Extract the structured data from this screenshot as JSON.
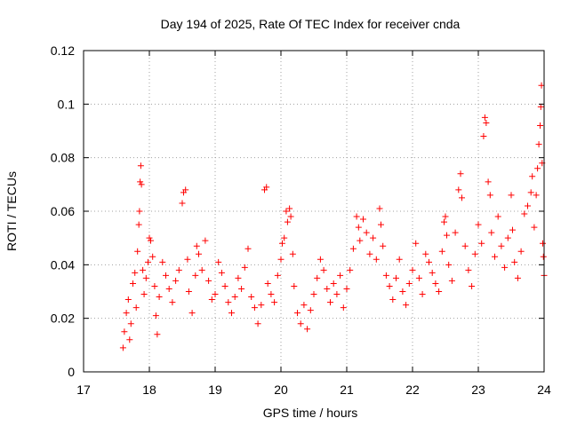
{
  "chart_data": {
    "type": "scatter",
    "title": "Day 194 of 2025, Rate Of TEC Index for receiver cnda",
    "xlabel": "GPS time / hours",
    "ylabel": "ROTI / TECUs",
    "xlim": [
      17,
      24
    ],
    "ylim": [
      0,
      0.12
    ],
    "xticks": [
      17,
      18,
      19,
      20,
      21,
      22,
      23,
      24
    ],
    "yticks": [
      0,
      0.02,
      0.04,
      0.06,
      0.08,
      0.1,
      0.12
    ],
    "x_tick_labels": [
      "17",
      "18",
      "19",
      "20",
      "21",
      "22",
      "23",
      "24"
    ],
    "y_tick_labels": [
      "0",
      "0.02",
      "0.04",
      "0.06",
      "0.08",
      "0.1",
      "0.12"
    ],
    "grid": true,
    "marker": "+",
    "color": "#ff0000",
    "series": [
      {
        "name": "ROTI",
        "points": [
          [
            17.6,
            0.009
          ],
          [
            17.62,
            0.015
          ],
          [
            17.65,
            0.022
          ],
          [
            17.68,
            0.027
          ],
          [
            17.7,
            0.012
          ],
          [
            17.72,
            0.018
          ],
          [
            17.75,
            0.033
          ],
          [
            17.78,
            0.037
          ],
          [
            17.8,
            0.024
          ],
          [
            17.82,
            0.045
          ],
          [
            17.84,
            0.055
          ],
          [
            17.85,
            0.06
          ],
          [
            17.86,
            0.071
          ],
          [
            17.87,
            0.077
          ],
          [
            17.88,
            0.07
          ],
          [
            17.9,
            0.038
          ],
          [
            17.92,
            0.029
          ],
          [
            17.95,
            0.035
          ],
          [
            17.98,
            0.041
          ],
          [
            18.0,
            0.05
          ],
          [
            18.02,
            0.049
          ],
          [
            18.05,
            0.043
          ],
          [
            18.08,
            0.032
          ],
          [
            18.1,
            0.021
          ],
          [
            18.12,
            0.014
          ],
          [
            18.15,
            0.028
          ],
          [
            18.2,
            0.041
          ],
          [
            18.25,
            0.036
          ],
          [
            18.3,
            0.031
          ],
          [
            18.35,
            0.026
          ],
          [
            18.4,
            0.034
          ],
          [
            18.45,
            0.038
          ],
          [
            18.5,
            0.063
          ],
          [
            18.52,
            0.067
          ],
          [
            18.55,
            0.068
          ],
          [
            18.58,
            0.042
          ],
          [
            18.6,
            0.03
          ],
          [
            18.65,
            0.022
          ],
          [
            18.7,
            0.036
          ],
          [
            18.72,
            0.047
          ],
          [
            18.75,
            0.044
          ],
          [
            18.8,
            0.038
          ],
          [
            18.85,
            0.049
          ],
          [
            18.9,
            0.034
          ],
          [
            18.95,
            0.027
          ],
          [
            19.0,
            0.029
          ],
          [
            19.05,
            0.041
          ],
          [
            19.1,
            0.037
          ],
          [
            19.15,
            0.032
          ],
          [
            19.2,
            0.026
          ],
          [
            19.25,
            0.022
          ],
          [
            19.3,
            0.028
          ],
          [
            19.35,
            0.035
          ],
          [
            19.4,
            0.031
          ],
          [
            19.45,
            0.039
          ],
          [
            19.5,
            0.046
          ],
          [
            19.55,
            0.028
          ],
          [
            19.6,
            0.024
          ],
          [
            19.65,
            0.018
          ],
          [
            19.7,
            0.025
          ],
          [
            19.75,
            0.068
          ],
          [
            19.78,
            0.069
          ],
          [
            19.8,
            0.033
          ],
          [
            19.85,
            0.029
          ],
          [
            19.9,
            0.026
          ],
          [
            19.95,
            0.036
          ],
          [
            20.0,
            0.042
          ],
          [
            20.02,
            0.048
          ],
          [
            20.05,
            0.05
          ],
          [
            20.08,
            0.06
          ],
          [
            20.1,
            0.056
          ],
          [
            20.13,
            0.061
          ],
          [
            20.15,
            0.058
          ],
          [
            20.18,
            0.044
          ],
          [
            20.2,
            0.032
          ],
          [
            20.25,
            0.022
          ],
          [
            20.3,
            0.018
          ],
          [
            20.35,
            0.025
          ],
          [
            20.4,
            0.016
          ],
          [
            20.45,
            0.023
          ],
          [
            20.5,
            0.029
          ],
          [
            20.55,
            0.035
          ],
          [
            20.6,
            0.042
          ],
          [
            20.65,
            0.038
          ],
          [
            20.7,
            0.031
          ],
          [
            20.75,
            0.026
          ],
          [
            20.8,
            0.033
          ],
          [
            20.85,
            0.029
          ],
          [
            20.9,
            0.036
          ],
          [
            20.95,
            0.024
          ],
          [
            21.0,
            0.031
          ],
          [
            21.05,
            0.038
          ],
          [
            21.1,
            0.046
          ],
          [
            21.15,
            0.058
          ],
          [
            21.18,
            0.054
          ],
          [
            21.2,
            0.049
          ],
          [
            21.25,
            0.057
          ],
          [
            21.3,
            0.052
          ],
          [
            21.35,
            0.044
          ],
          [
            21.4,
            0.05
          ],
          [
            21.45,
            0.042
          ],
          [
            21.5,
            0.061
          ],
          [
            21.52,
            0.055
          ],
          [
            21.55,
            0.047
          ],
          [
            21.6,
            0.036
          ],
          [
            21.65,
            0.032
          ],
          [
            21.7,
            0.027
          ],
          [
            21.75,
            0.035
          ],
          [
            21.8,
            0.042
          ],
          [
            21.85,
            0.03
          ],
          [
            21.9,
            0.025
          ],
          [
            21.95,
            0.033
          ],
          [
            22.0,
            0.038
          ],
          [
            22.05,
            0.048
          ],
          [
            22.1,
            0.035
          ],
          [
            22.15,
            0.029
          ],
          [
            22.2,
            0.044
          ],
          [
            22.25,
            0.041
          ],
          [
            22.3,
            0.037
          ],
          [
            22.35,
            0.033
          ],
          [
            22.4,
            0.03
          ],
          [
            22.45,
            0.045
          ],
          [
            22.48,
            0.056
          ],
          [
            22.5,
            0.058
          ],
          [
            22.52,
            0.051
          ],
          [
            22.55,
            0.04
          ],
          [
            22.6,
            0.034
          ],
          [
            22.65,
            0.052
          ],
          [
            22.7,
            0.068
          ],
          [
            22.73,
            0.074
          ],
          [
            22.75,
            0.065
          ],
          [
            22.8,
            0.047
          ],
          [
            22.85,
            0.038
          ],
          [
            22.9,
            0.032
          ],
          [
            22.95,
            0.044
          ],
          [
            23.0,
            0.055
          ],
          [
            23.05,
            0.048
          ],
          [
            23.08,
            0.088
          ],
          [
            23.1,
            0.095
          ],
          [
            23.12,
            0.093
          ],
          [
            23.15,
            0.071
          ],
          [
            23.18,
            0.066
          ],
          [
            23.2,
            0.052
          ],
          [
            23.25,
            0.043
          ],
          [
            23.3,
            0.058
          ],
          [
            23.35,
            0.047
          ],
          [
            23.4,
            0.039
          ],
          [
            23.45,
            0.05
          ],
          [
            23.5,
            0.066
          ],
          [
            23.52,
            0.053
          ],
          [
            23.55,
            0.041
          ],
          [
            23.6,
            0.035
          ],
          [
            23.65,
            0.045
          ],
          [
            23.7,
            0.059
          ],
          [
            23.75,
            0.062
          ],
          [
            23.8,
            0.067
          ],
          [
            23.82,
            0.073
          ],
          [
            23.85,
            0.054
          ],
          [
            23.88,
            0.066
          ],
          [
            23.9,
            0.076
          ],
          [
            23.92,
            0.085
          ],
          [
            23.94,
            0.092
          ],
          [
            23.95,
            0.099
          ],
          [
            23.96,
            0.107
          ],
          [
            23.97,
            0.078
          ],
          [
            23.98,
            0.048
          ],
          [
            23.99,
            0.043
          ],
          [
            24.0,
            0.036
          ]
        ]
      }
    ]
  }
}
